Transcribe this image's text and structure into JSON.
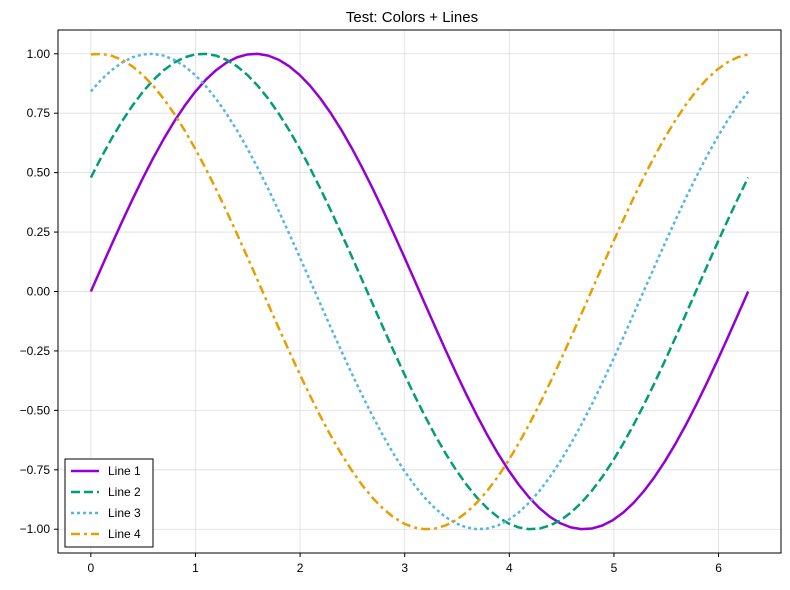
{
  "chart_data": {
    "type": "line",
    "title": "Test: Colors + Lines",
    "xlabel": "",
    "ylabel": "",
    "xlim": [
      -0.314,
      6.597
    ],
    "ylim": [
      -1.1,
      1.1
    ],
    "xticks": [
      0,
      1,
      2,
      3,
      4,
      5,
      6
    ],
    "xtick_labels": [
      "0",
      "1",
      "2",
      "3",
      "4",
      "5",
      "6"
    ],
    "yticks": [
      -1.0,
      -0.75,
      -0.5,
      -0.25,
      0.0,
      0.25,
      0.5,
      0.75,
      1.0
    ],
    "ytick_labels": [
      "−1.00",
      "−0.75",
      "−0.50",
      "−0.25",
      "0.00",
      "0.25",
      "0.50",
      "0.75",
      "1.00"
    ],
    "grid": true,
    "legend_position": "lower-left",
    "x_range": [
      0,
      6.2832
    ],
    "num_points": 64,
    "series": [
      {
        "name": "Line 1",
        "function": "sin(x)",
        "color": "#9400d3",
        "linestyle": "solid"
      },
      {
        "name": "Line 2",
        "function": "sin(x + 0.5)",
        "color": "#009e73",
        "linestyle": "dashed"
      },
      {
        "name": "Line 3",
        "function": "sin(x + 1.0)",
        "color": "#56b4e9",
        "linestyle": "dotted"
      },
      {
        "name": "Line 4",
        "function": "sin(x + 1.5)",
        "color": "#e69f00",
        "linestyle": "dashdot"
      }
    ]
  }
}
